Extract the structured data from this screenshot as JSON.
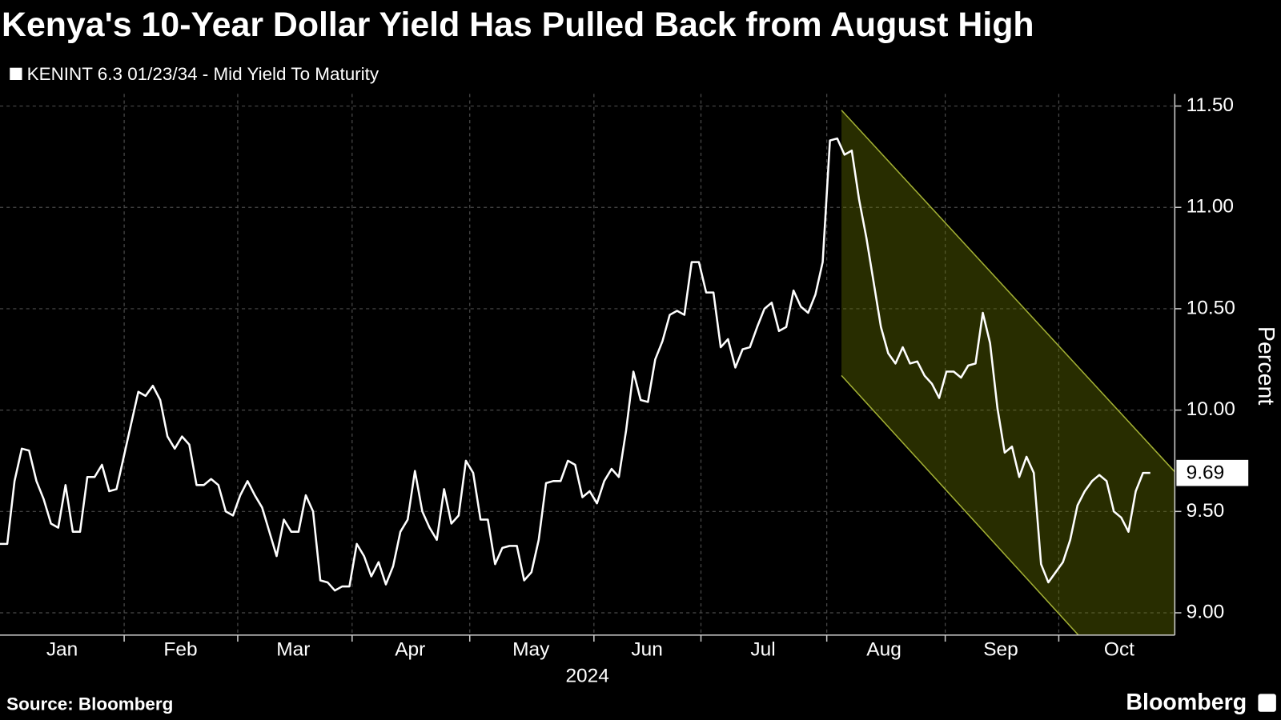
{
  "chart_data": {
    "type": "line",
    "title": "Kenya's 10-Year Dollar Yield Has Pulled Back from August High",
    "series": [
      {
        "name": "KENINT 6.3 01/23/34 - Mid Yield To Maturity",
        "color": "#ffffff",
        "values": [
          9.34,
          9.34,
          9.65,
          9.81,
          9.8,
          9.65,
          9.56,
          9.44,
          9.42,
          9.63,
          9.4,
          9.4,
          9.67,
          9.67,
          9.73,
          9.6,
          9.61,
          9.77,
          9.93,
          10.09,
          10.07,
          10.12,
          10.05,
          9.87,
          9.81,
          9.87,
          9.83,
          9.63,
          9.63,
          9.66,
          9.63,
          9.5,
          9.48,
          9.58,
          9.65,
          9.58,
          9.52,
          9.4,
          9.28,
          9.46,
          9.4,
          9.4,
          9.58,
          9.5,
          9.16,
          9.15,
          9.11,
          9.13,
          9.13,
          9.34,
          9.28,
          9.18,
          9.25,
          9.14,
          9.23,
          9.4,
          9.46,
          9.7,
          9.5,
          9.42,
          9.36,
          9.61,
          9.44,
          9.48,
          9.75,
          9.69,
          9.46,
          9.46,
          9.24,
          9.32,
          9.33,
          9.33,
          9.16,
          9.2,
          9.36,
          9.64,
          9.65,
          9.65,
          9.75,
          9.73,
          9.57,
          9.6,
          9.54,
          9.65,
          9.71,
          9.67,
          9.9,
          10.19,
          10.05,
          10.04,
          10.25,
          10.34,
          10.47,
          10.49,
          10.47,
          10.73,
          10.73,
          10.58,
          10.58,
          10.31,
          10.35,
          10.21,
          10.3,
          10.31,
          10.41,
          10.5,
          10.53,
          10.39,
          10.41,
          10.59,
          10.51,
          10.48,
          10.57,
          10.73,
          11.33,
          11.34,
          11.26,
          11.28,
          11.04,
          10.85,
          10.63,
          10.41,
          10.28,
          10.23,
          10.31,
          10.23,
          10.24,
          10.17,
          10.13,
          10.06,
          10.19,
          10.19,
          10.16,
          10.22,
          10.23,
          10.48,
          10.33,
          10.01,
          9.79,
          9.82,
          9.67,
          9.77,
          9.69,
          9.24,
          9.15,
          9.2,
          9.25,
          9.36,
          9.53,
          9.6,
          9.65,
          9.68,
          9.65,
          9.5,
          9.47,
          9.4,
          9.6,
          9.69,
          9.69
        ]
      }
    ],
    "months": [
      "Jan",
      "Feb",
      "Mar",
      "Apr",
      "May",
      "Jun",
      "Jul",
      "Aug",
      "Sep",
      "Oct"
    ],
    "year": "2024",
    "ylabel": "Percent",
    "ylim": [
      8.89,
      11.56
    ],
    "yticks": [
      {
        "value": 9,
        "label": "9.00"
      },
      {
        "value": 9.5,
        "label": "9.50"
      },
      {
        "value": 10,
        "label": "10.00"
      },
      {
        "value": 10.5,
        "label": "10.50"
      },
      {
        "value": 11,
        "label": "11.00"
      },
      {
        "value": 11.5,
        "label": "11.50"
      }
    ],
    "grid": true,
    "source": "Source: Bloomberg",
    "brand": "Bloomberg"
  }
}
